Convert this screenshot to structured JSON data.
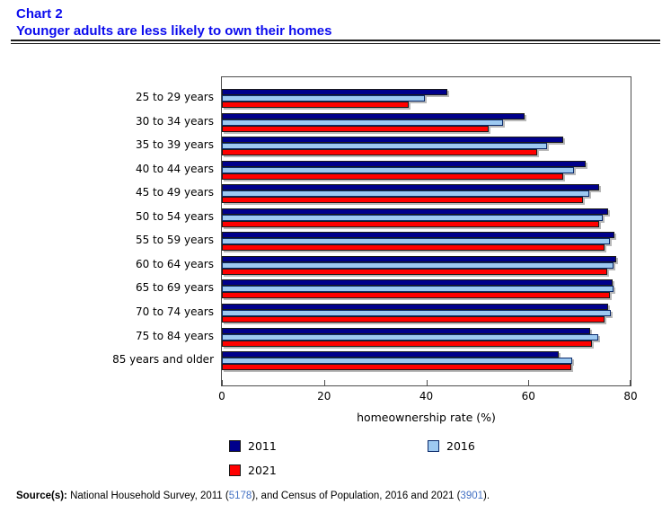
{
  "header": {
    "kicker": "Chart 2",
    "title": "Younger adults are less likely to own their homes"
  },
  "chart_data": {
    "type": "bar",
    "orientation": "horizontal",
    "title": "Younger adults are less likely to own their homes",
    "xlabel": "homeownership rate (%)",
    "ylabel": "",
    "xlim": [
      0,
      80
    ],
    "xticks": [
      0,
      20,
      40,
      60,
      80
    ],
    "grid": false,
    "legend_position": "bottom",
    "categories": [
      "25 to 29 years",
      "30 to 34 years",
      "35 to 39 years",
      "40 to 44 years",
      "45 to 49 years",
      "50 to 54 years",
      "55 to 59 years",
      "60 to 64 years",
      "65 to 69 years",
      "70 to 74 years",
      "75 to 84 years",
      "85 years and older"
    ],
    "series": [
      {
        "name": "2011",
        "color": "#00008B",
        "border": "#1a1a1a",
        "values": [
          44.1,
          59.2,
          66.9,
          71.2,
          73.9,
          75.6,
          76.9,
          77.1,
          76.4,
          75.6,
          72.0,
          65.9
        ]
      },
      {
        "name": "2016",
        "color": "#9DC9F1",
        "border": "#0b2a6b",
        "values": [
          39.8,
          55.0,
          63.6,
          69.0,
          71.9,
          74.5,
          75.9,
          76.7,
          76.6,
          76.1,
          73.6,
          68.5
        ]
      },
      {
        "name": "2021",
        "color": "#FF0000",
        "border": "#1a1a1a",
        "values": [
          36.5,
          52.3,
          61.7,
          66.9,
          70.7,
          73.8,
          74.9,
          75.4,
          76.0,
          74.9,
          72.4,
          68.4
        ]
      }
    ]
  },
  "source": {
    "prefix": "Source(s):",
    "segments": [
      {
        "text": " National Household Survey, 2011 ("
      },
      {
        "text": "5178",
        "link": true
      },
      {
        "text": "), and Census of Population, 2016 and 2021 ("
      },
      {
        "text": "3901",
        "link": true
      },
      {
        "text": ")."
      }
    ]
  },
  "colors": {
    "title_blue": "#0b0bee",
    "link_blue": "#4472c4",
    "axis_border": "#4d4d4d"
  }
}
